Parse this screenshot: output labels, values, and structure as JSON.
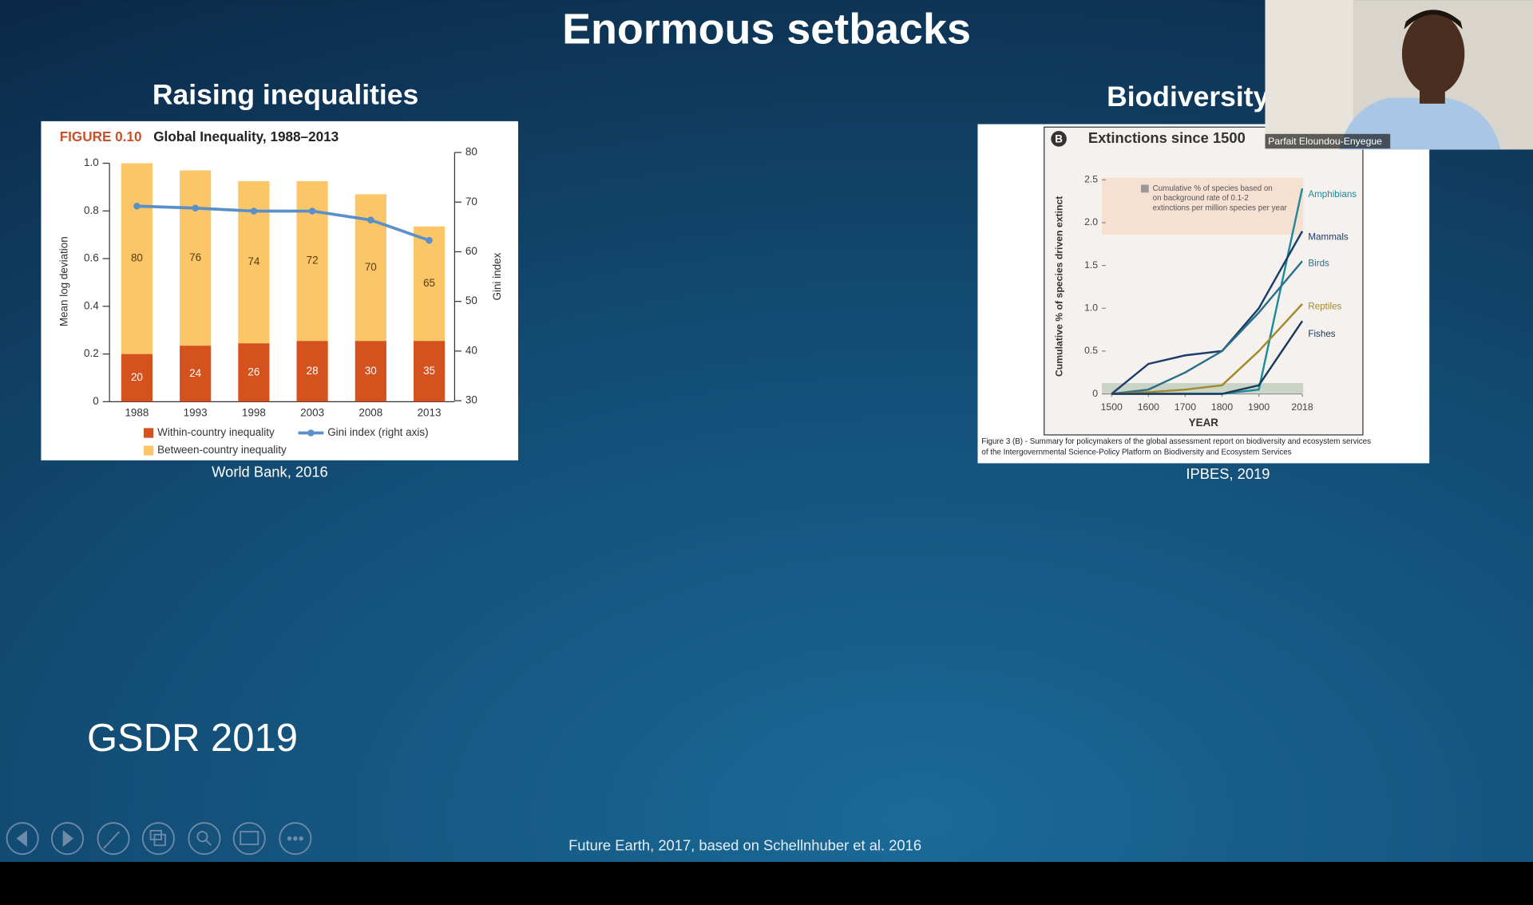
{
  "slide": {
    "title": "Enormous setbacks",
    "left_heading": "Raising inequalities",
    "right_heading": "Biodiversity",
    "left_caption": "World Bank, 2016",
    "right_caption": "IPBES, 2019",
    "footer_label": "GSDR 2019",
    "source": "Future Earth, 2017, based on Schellnhuber et al. 2016"
  },
  "video": {
    "name": "Parfait Eloundou-Enyegue"
  },
  "chart_data": [
    {
      "type": "bar",
      "stacked": true,
      "figure_label": "FIGURE 0.10",
      "title": "Global Inequality, 1988–2013",
      "ylabel": "Mean log deviation",
      "y2label": "Gini index",
      "categories": [
        "1988",
        "1993",
        "1998",
        "2003",
        "2008",
        "2013"
      ],
      "series": [
        {
          "name": "Within-country inequality",
          "color": "#d4521e",
          "values": [
            0.2,
            0.235,
            0.245,
            0.255,
            0.255,
            0.255
          ],
          "shares": [
            20,
            24,
            26,
            28,
            30,
            35
          ]
        },
        {
          "name": "Between-country inequality",
          "color": "#fbc667",
          "values": [
            0.8,
            0.735,
            0.68,
            0.67,
            0.615,
            0.48
          ],
          "shares": [
            80,
            76,
            74,
            72,
            70,
            65
          ]
        },
        {
          "name": "Gini index (right axis)",
          "color": "#5b8fc9",
          "axis": "y2",
          "type": "line",
          "values": [
            69.2,
            68.8,
            68.2,
            68.2,
            66.4,
            62.3
          ]
        }
      ],
      "ylim": [
        0,
        1
      ],
      "yticks": [
        0,
        0.2,
        0.4,
        0.6,
        0.8,
        {
          "value": 1,
          "label": "1.0"
        }
      ],
      "y2lim": [
        30,
        80
      ],
      "y2ticks": [
        30,
        40,
        50,
        60,
        70,
        80
      ]
    },
    {
      "type": "line",
      "panel": "B",
      "title": "Extinctions since 1500",
      "ylabel": "Cumulative % of species driven extinct",
      "xlabel": "YEAR",
      "annotation_lines": [
        "Cumulative % of species based on",
        "on background rate of 0.1-2",
        "extinctions per million species per year"
      ],
      "caption_lines": [
        "Figure 3 (B) - Summary for policymakers of the global assessment report on biodiversity and ecosystem services",
        "of the Intergovernmental Science-Policy Platform on Biodiversity and Ecosystem Services"
      ],
      "x": [
        1500,
        1600,
        1700,
        1800,
        1900,
        2018
      ],
      "series": [
        {
          "name": "Amphibians",
          "color": "#1f8a9a",
          "values": [
            0,
            0,
            0,
            0,
            0.05,
            2.4
          ]
        },
        {
          "name": "Mammals",
          "color": "#1a3d6b",
          "values": [
            0,
            0.35,
            0.45,
            0.5,
            1.0,
            1.9
          ]
        },
        {
          "name": "Birds",
          "color": "#2a6f8a",
          "values": [
            0,
            0.05,
            0.25,
            0.5,
            0.95,
            1.55
          ]
        },
        {
          "name": "Reptiles",
          "color": "#a08a2a",
          "values": [
            0,
            0.02,
            0.05,
            0.1,
            0.5,
            1.05
          ]
        },
        {
          "name": "Fishes",
          "color": "#1a3a5a",
          "values": [
            0,
            0,
            0,
            0,
            0.1,
            0.85
          ]
        }
      ],
      "xlim": [
        1500,
        2018
      ],
      "xticks": [
        1500,
        1600,
        1700,
        1800,
        1900,
        2018
      ],
      "ylim": [
        0,
        2.5
      ],
      "yticks": [
        0,
        0.5,
        {
          "value": 1,
          "label": "1.0"
        },
        1.5,
        {
          "value": 2,
          "label": "2.0"
        },
        2.5
      ]
    }
  ]
}
